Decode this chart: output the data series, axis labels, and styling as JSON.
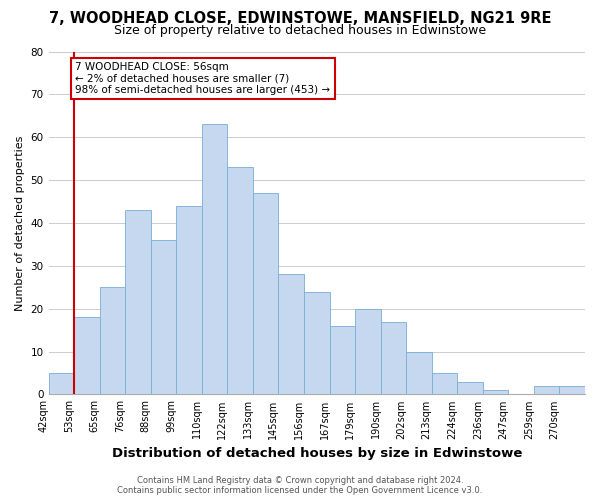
{
  "title": "7, WOODHEAD CLOSE, EDWINSTOWE, MANSFIELD, NG21 9RE",
  "subtitle": "Size of property relative to detached houses in Edwinstowe",
  "xlabel": "Distribution of detached houses by size in Edwinstowe",
  "ylabel": "Number of detached properties",
  "bar_labels": [
    "42sqm",
    "53sqm",
    "65sqm",
    "76sqm",
    "88sqm",
    "99sqm",
    "110sqm",
    "122sqm",
    "133sqm",
    "145sqm",
    "156sqm",
    "167sqm",
    "179sqm",
    "190sqm",
    "202sqm",
    "213sqm",
    "224sqm",
    "236sqm",
    "247sqm",
    "259sqm",
    "270sqm"
  ],
  "bar_values": [
    5,
    18,
    25,
    43,
    36,
    44,
    63,
    53,
    47,
    28,
    24,
    16,
    20,
    17,
    10,
    5,
    3,
    1,
    0,
    2,
    2
  ],
  "bar_color": "#c5d8f0",
  "bar_edge_color": "#7aadd4",
  "highlight_bar_index": 1,
  "highlight_color": "#cc0000",
  "ylim": [
    0,
    80
  ],
  "yticks": [
    0,
    10,
    20,
    30,
    40,
    50,
    60,
    70,
    80
  ],
  "annotation_text": "7 WOODHEAD CLOSE: 56sqm\n← 2% of detached houses are smaller (7)\n98% of semi-detached houses are larger (453) →",
  "annotation_box_color": "#ffffff",
  "annotation_box_edge": "#cc0000",
  "footer_line1": "Contains HM Land Registry data © Crown copyright and database right 2024.",
  "footer_line2": "Contains public sector information licensed under the Open Government Licence v3.0.",
  "bg_color": "#ffffff",
  "grid_color": "#cccccc",
  "title_fontsize": 10.5,
  "subtitle_fontsize": 9,
  "xlabel_fontsize": 9.5,
  "ylabel_fontsize": 8,
  "tick_fontsize": 7,
  "footer_fontsize": 6,
  "ann_fontsize": 7.5
}
